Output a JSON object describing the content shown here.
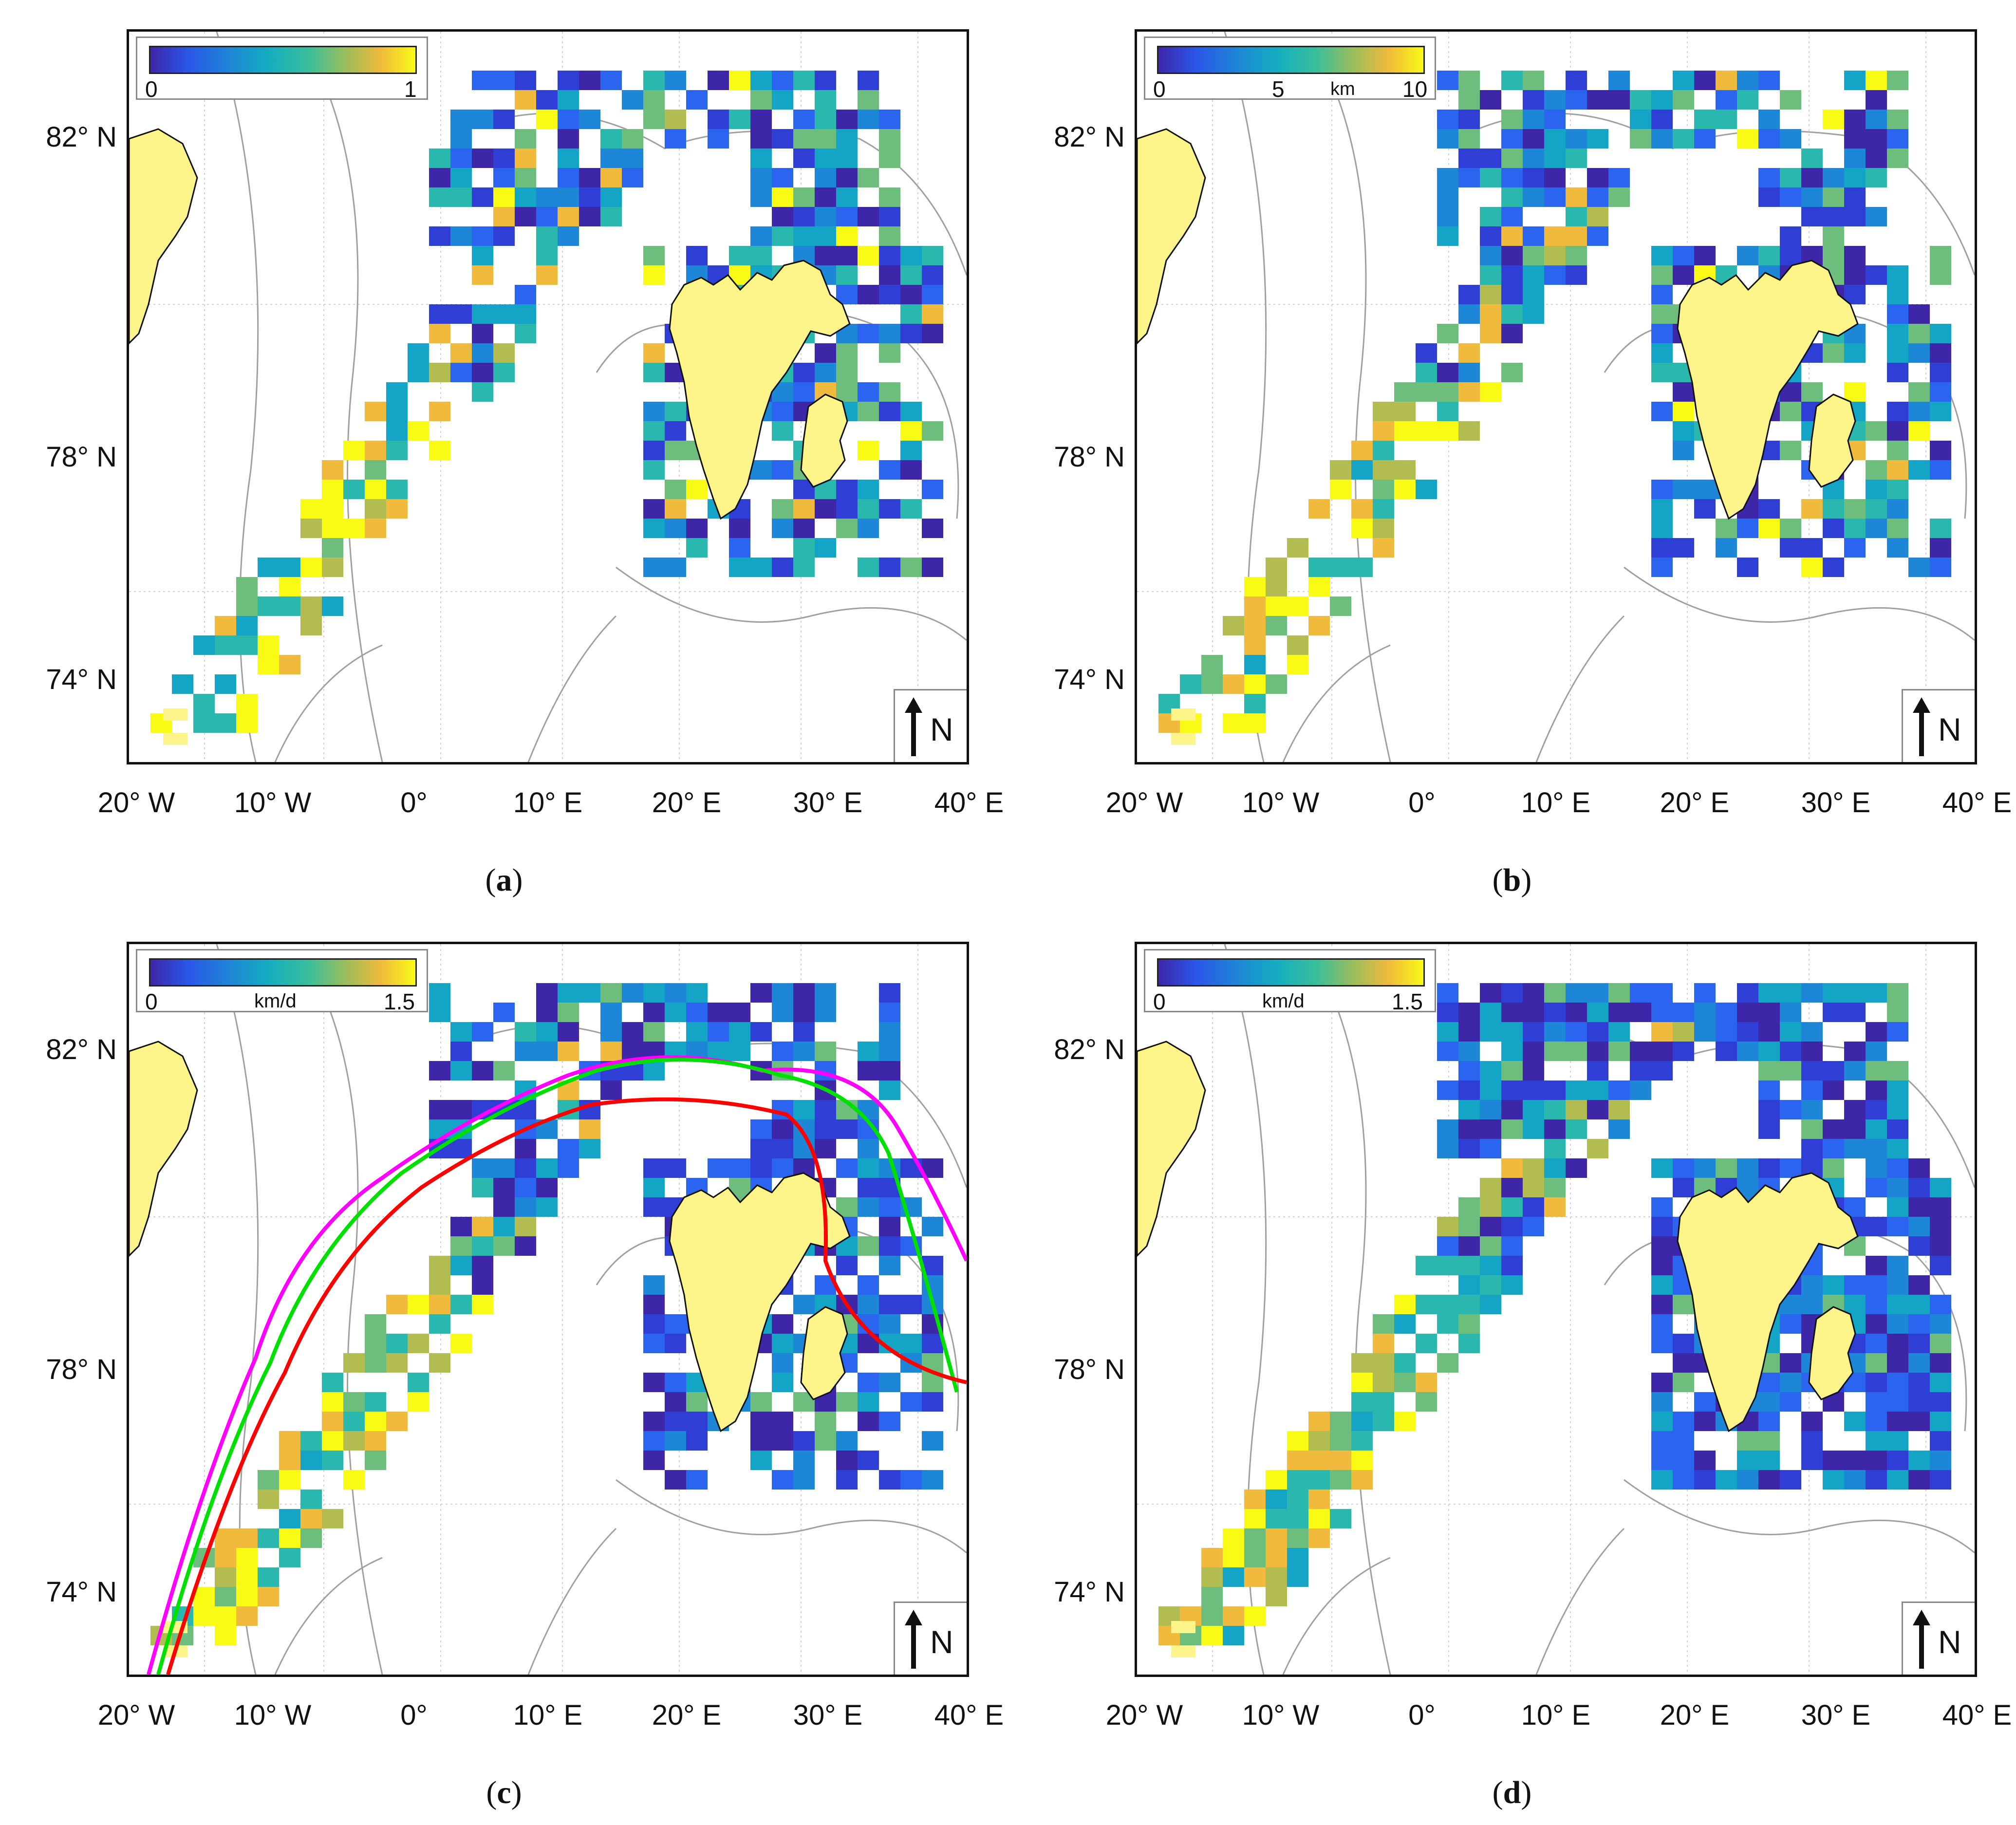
{
  "lat_ticks": [
    "82° N",
    "78° N",
    "74° N"
  ],
  "lon_ticks": [
    "20° W",
    "10° W",
    "0°",
    "10° E",
    "20° E",
    "30° E",
    "40° E"
  ],
  "north_letter": "N",
  "colormap": "parula",
  "land_color": "#fdf58a",
  "contour_color": "#a0a0a0",
  "panels": [
    {
      "id": "a",
      "label": "a",
      "colorbar": {
        "ticks": [
          "0",
          "1"
        ],
        "unit": "",
        "range": [
          0,
          1
        ]
      }
    },
    {
      "id": "b",
      "label": "b",
      "colorbar": {
        "ticks": [
          "0",
          "5",
          "10"
        ],
        "unit": "km",
        "range": [
          0,
          10
        ]
      }
    },
    {
      "id": "c",
      "label": "c",
      "colorbar": {
        "ticks": [
          "0",
          "1.5"
        ],
        "unit": "km/d",
        "range": [
          0,
          1.5
        ]
      },
      "overlay_lines": [
        {
          "color": "#ff00ff"
        },
        {
          "color": "#00e000"
        },
        {
          "color": "#ff0000"
        }
      ]
    },
    {
      "id": "d",
      "label": "d",
      "colorbar": {
        "ticks": [
          "0",
          "1.5"
        ],
        "unit": "km/d",
        "range": [
          0,
          1.5
        ]
      }
    }
  ]
}
